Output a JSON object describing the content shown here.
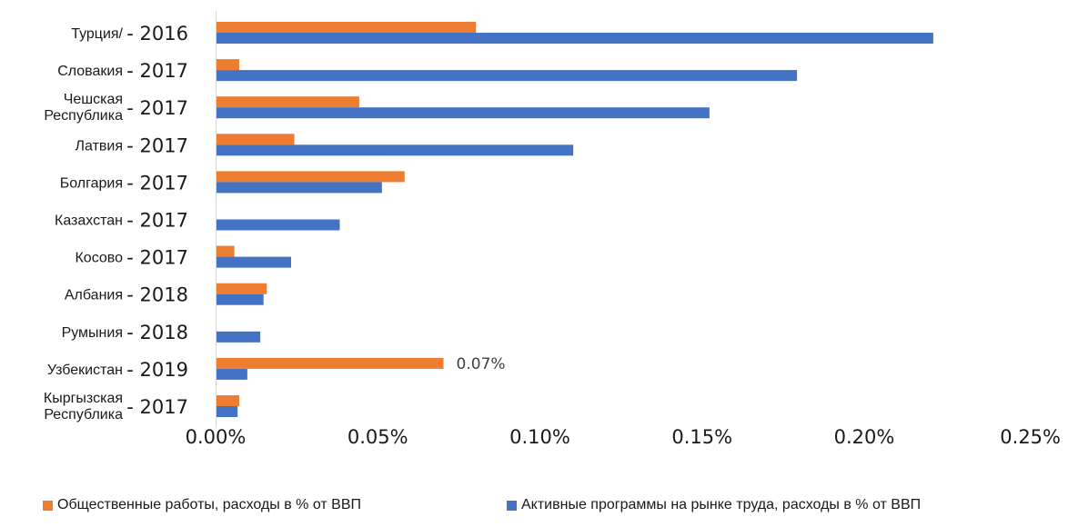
{
  "chart_data": {
    "type": "bar",
    "orientation": "horizontal",
    "categories": [
      {
        "name": [
          "Турция/"
        ],
        "year": "- 2016"
      },
      {
        "name": [
          "Словакия"
        ],
        "year": "- 2017"
      },
      {
        "name": [
          "Чешская",
          "Республика"
        ],
        "year": "- 2017"
      },
      {
        "name": [
          "Латвия"
        ],
        "year": "- 2017"
      },
      {
        "name": [
          "Болгария"
        ],
        "year": "- 2017"
      },
      {
        "name": [
          "Казахстан"
        ],
        "year": "- 2017"
      },
      {
        "name": [
          "Косово"
        ],
        "year": "- 2017"
      },
      {
        "name": [
          "Албания"
        ],
        "year": "- 2018"
      },
      {
        "name": [
          "Румыния"
        ],
        "year": "- 2018"
      },
      {
        "name": [
          "Узбекистан"
        ],
        "year": "- 2019"
      },
      {
        "name": [
          "Кыргызская",
          "Республика"
        ],
        "year": "- 2017"
      }
    ],
    "series": [
      {
        "name": "Общественные работы, расходы в % от ВВП",
        "color": "#ed7d31",
        "values": [
          0.08,
          0.007,
          0.044,
          0.024,
          0.058,
          0,
          0.0055,
          0.0155,
          0,
          0.07,
          0.007
        ]
      },
      {
        "name": "Активные программы на рынке труда, расходы в % от ВВП",
        "color": "#4472c4",
        "values": [
          0.221,
          0.179,
          0.152,
          0.11,
          0.051,
          0.038,
          0.023,
          0.0145,
          0.0135,
          0.0095,
          0.0065
        ]
      }
    ],
    "data_labels": [
      {
        "series": 0,
        "category": 9,
        "text": "0.07%"
      }
    ],
    "xlim": [
      0,
      0.25
    ],
    "xticks": [
      {
        "value": 0,
        "label": "0.00%"
      },
      {
        "value": 0.05,
        "label": "0.05%"
      },
      {
        "value": 0.1,
        "label": "0.10%"
      },
      {
        "value": 0.15,
        "label": "0.15%"
      },
      {
        "value": 0.2,
        "label": "0.20%"
      },
      {
        "value": 0.25,
        "label": "0.25%"
      }
    ],
    "grid": false,
    "legend_position": "bottom"
  }
}
